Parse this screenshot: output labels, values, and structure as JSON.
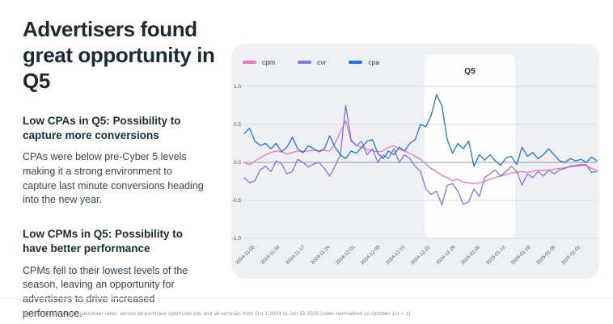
{
  "slide": {
    "title": "Advertisers found great opportunity in Q5",
    "sections": [
      {
        "heading": "Low CPAs in Q5: Possibility to capture more conversions",
        "body": "CPAs were below pre-Cyber 5 levels making it a strong environment to capture last minute conversions heading into the new year."
      },
      {
        "heading": "Low CPMs in Q5: Possibility to have better performance",
        "body": "CPMs fell to their lowest levels of the season, leaving an opportunity for advertisers to drive increased performance."
      }
    ],
    "source": "Source: Global median advertiser rates, across all purchase optimized ads and all verticals from Oct 1 2024 to Jan 15 2025 (rates normalized so October 1st = 1)"
  },
  "colors": {
    "cpm": "#ee74be",
    "cvr": "#8174e8",
    "cpa": "#1e73e8",
    "card_bg": "#eff0f4",
    "highlight_bg": "#fdfdfe",
    "grid": "#d9dbe0",
    "zero_line": "#9097a0",
    "tick_text": "#4a5560",
    "title_text": "#1c2b33"
  },
  "chart_data": {
    "type": "line",
    "title": "",
    "xlabel": "",
    "ylabel": "",
    "ylim": [
      -1.0,
      1.0
    ],
    "grid": true,
    "legend_position": "top-left",
    "y_tick_labels": [
      "1.0",
      "0.5",
      "0.0",
      "-0.5",
      "-1.0"
    ],
    "y_tick_values": [
      1.0,
      0.5,
      0.0,
      -0.5,
      -1.0
    ],
    "x_tick_labels": [
      "2024-11-03",
      "2024-11-10",
      "2024-11-17",
      "2024-11-24",
      "2024-12-01",
      "2024-12-08",
      "2024-12-15",
      "2024-12-22",
      "2024-12-29",
      "2025-01-05",
      "2025-01-12",
      "2025-01-19",
      "2025-01-26",
      "2025-02-02"
    ],
    "highlight_region": {
      "label": "Q5",
      "from_tick": 6.77,
      "to_tick": 10.39
    },
    "series": [
      {
        "name": "cpm",
        "values": [
          0.0,
          -0.03,
          0.02,
          0.06,
          0.1,
          0.13,
          0.15,
          0.14,
          0.11,
          0.13,
          0.15,
          0.14,
          0.15,
          0.16,
          0.15,
          0.16,
          0.15,
          0.25,
          0.4,
          0.55,
          0.28,
          0.22,
          0.2,
          0.17,
          0.15,
          0.14,
          0.15,
          0.2,
          0.22,
          0.18,
          0.15,
          0.12,
          0.08,
          0.04,
          -0.02,
          -0.08,
          -0.12,
          -0.17,
          -0.2,
          -0.24,
          -0.22,
          -0.26,
          -0.27,
          -0.28,
          -0.27,
          -0.25,
          -0.22,
          -0.2,
          -0.18,
          -0.16,
          -0.14,
          -0.13,
          -0.12,
          -0.13,
          -0.12,
          -0.1,
          -0.11,
          -0.1,
          -0.09,
          -0.08,
          -0.07,
          -0.06,
          -0.05,
          -0.04,
          -0.04,
          -0.08,
          -0.1
        ]
      },
      {
        "name": "cvr",
        "values": [
          -0.2,
          -0.27,
          -0.24,
          -0.1,
          -0.05,
          -0.12,
          0.02,
          -0.02,
          -0.15,
          -0.12,
          0.04,
          0.0,
          -0.06,
          -0.02,
          0.0,
          -0.08,
          -0.18,
          -0.05,
          0.1,
          0.75,
          0.3,
          0.22,
          0.28,
          0.1,
          0.18,
          0.0,
          0.1,
          0.05,
          0.18,
          0.0,
          0.1,
          0.05,
          -0.05,
          -0.12,
          -0.35,
          -0.42,
          -0.38,
          -0.56,
          -0.3,
          -0.28,
          -0.38,
          -0.55,
          -0.52,
          -0.35,
          -0.45,
          -0.2,
          -0.15,
          -0.1,
          -0.18,
          -0.12,
          -0.05,
          -0.12,
          -0.3,
          -0.15,
          -0.2,
          -0.12,
          -0.18,
          -0.1,
          -0.15,
          -0.1,
          -0.08,
          -0.05,
          -0.04,
          -0.03,
          -0.03,
          -0.13,
          -0.12
        ]
      },
      {
        "name": "cpa",
        "values": [
          0.38,
          0.45,
          0.28,
          0.22,
          0.25,
          0.18,
          0.25,
          0.14,
          0.2,
          0.33,
          0.18,
          0.13,
          0.22,
          0.18,
          0.14,
          0.18,
          0.35,
          0.2,
          0.1,
          0.05,
          0.15,
          0.12,
          0.2,
          0.28,
          0.3,
          0.12,
          0.05,
          0.15,
          0.1,
          0.2,
          0.15,
          0.25,
          0.3,
          0.5,
          0.47,
          0.62,
          0.89,
          0.75,
          0.3,
          0.12,
          0.25,
          0.18,
          0.28,
          -0.05,
          0.1,
          0.03,
          0.1,
          0.02,
          -0.04,
          0.06,
          0.08,
          -0.03,
          0.2,
          0.08,
          0.13,
          0.05,
          0.1,
          0.18,
          0.1,
          0.02,
          0.0,
          0.05,
          0.02,
          0.04,
          0.0,
          0.07,
          0.02
        ]
      }
    ]
  }
}
